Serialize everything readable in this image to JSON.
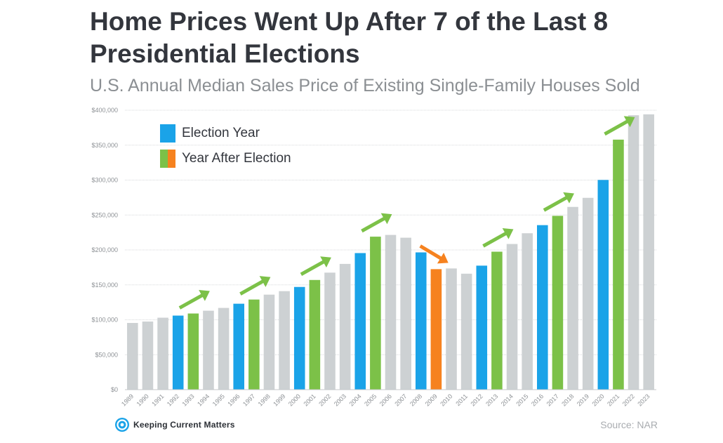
{
  "header": {
    "title": "Home Prices Went Up After 7 of the Last 8 Presidential Elections",
    "subtitle": "U.S. Annual Median Sales Price of Existing Single-Family Houses Sold"
  },
  "legend": {
    "items": [
      {
        "label": "Election Year",
        "colors": [
          "#1aa3e8"
        ]
      },
      {
        "label": "Year After Election",
        "colors": [
          "#7cc148",
          "#f6821f"
        ]
      }
    ]
  },
  "footer": {
    "brand": "Keeping Current Matters",
    "source": "Source: NAR"
  },
  "colors": {
    "other": "#cdd1d3",
    "election_year": "#1aa3e8",
    "year_after_up": "#7cc148",
    "year_after_down": "#f6821f",
    "grid": "#d7d9db",
    "tick_text": "#8d9195"
  },
  "chart_data": {
    "type": "bar",
    "title": "Home Prices Went Up After 7 of the Last 8 Presidential Elections",
    "subtitle": "U.S. Annual Median Sales Price of Existing Single-Family Houses Sold",
    "xlabel": "",
    "ylabel": "",
    "ylim": [
      0,
      400000
    ],
    "yticks": [
      0,
      50000,
      100000,
      150000,
      200000,
      250000,
      300000,
      350000,
      400000
    ],
    "ytick_labels": [
      "$0",
      "$50,000",
      "$100,000",
      "$150,000",
      "$200,000",
      "$250,000",
      "$300,000",
      "$350,000",
      "$400,000"
    ],
    "grid": true,
    "legend_position": "top-left",
    "categories": [
      "1989",
      "1990",
      "1991",
      "1992",
      "1993",
      "1994",
      "1995",
      "1996",
      "1997",
      "1998",
      "1999",
      "2000",
      "2001",
      "2002",
      "2003",
      "2004",
      "2005",
      "2006",
      "2007",
      "2008",
      "2009",
      "2010",
      "2011",
      "2012",
      "2013",
      "2014",
      "2015",
      "2016",
      "2017",
      "2018",
      "2019",
      "2020",
      "2021",
      "2022",
      "2023"
    ],
    "values": [
      95500,
      97500,
      103000,
      106000,
      109000,
      113000,
      117000,
      123000,
      129000,
      136000,
      141000,
      147000,
      157000,
      167500,
      180000,
      195500,
      219000,
      221500,
      217500,
      196500,
      172500,
      173500,
      166000,
      177500,
      197500,
      208500,
      223900,
      235500,
      248800,
      261600,
      274600,
      300200,
      357900,
      392800,
      394100
    ],
    "bar_types": [
      "other",
      "other",
      "other",
      "election",
      "after_up",
      "other",
      "other",
      "election",
      "after_up",
      "other",
      "other",
      "election",
      "after_up",
      "other",
      "other",
      "election",
      "after_up",
      "other",
      "other",
      "election",
      "after_down",
      "other",
      "other",
      "election",
      "after_up",
      "other",
      "other",
      "election",
      "after_up",
      "other",
      "other",
      "election",
      "after_up",
      "other",
      "other"
    ],
    "annotations": [
      {
        "type": "arrow",
        "year": "1993",
        "direction": "up",
        "color": "#7cc148"
      },
      {
        "type": "arrow",
        "year": "1997",
        "direction": "up",
        "color": "#7cc148"
      },
      {
        "type": "arrow",
        "year": "2001",
        "direction": "up",
        "color": "#7cc148"
      },
      {
        "type": "arrow",
        "year": "2005",
        "direction": "up",
        "color": "#7cc148"
      },
      {
        "type": "arrow",
        "year": "2009",
        "direction": "down",
        "color": "#f6821f"
      },
      {
        "type": "arrow",
        "year": "2013",
        "direction": "up",
        "color": "#7cc148"
      },
      {
        "type": "arrow",
        "year": "2017",
        "direction": "up",
        "color": "#7cc148"
      },
      {
        "type": "arrow",
        "year": "2021",
        "direction": "up",
        "color": "#7cc148"
      }
    ]
  }
}
